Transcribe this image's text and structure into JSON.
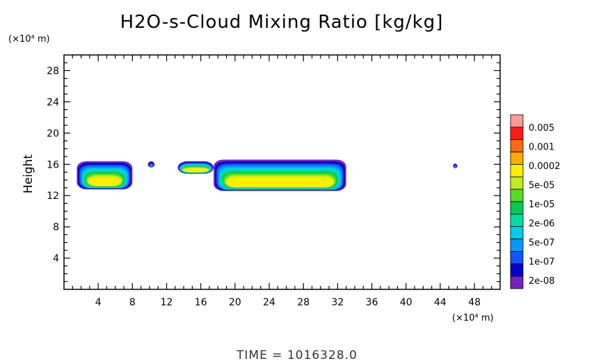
{
  "chart_data": {
    "type": "heatmap",
    "title": "H2O-s-Cloud Mixing Ratio [kg/kg]",
    "ylabel": "Height",
    "xunit": "(×10⁴ m)",
    "yunit": "(×10⁴ m)",
    "xlim": [
      0,
      51
    ],
    "ylim": [
      0,
      30
    ],
    "xticks": [
      "4",
      "8",
      "12",
      "16",
      "20",
      "24",
      "28",
      "32",
      "36",
      "40",
      "44",
      "48"
    ],
    "xtick_values": [
      4,
      8,
      12,
      16,
      20,
      24,
      28,
      32,
      36,
      40,
      44,
      48
    ],
    "yticks": [
      "4",
      "8",
      "12",
      "16",
      "20",
      "24",
      "28"
    ],
    "ytick_values": [
      4,
      8,
      12,
      16,
      20,
      24,
      28
    ],
    "time_label": "TIME = 1016328.0",
    "colorbar": {
      "labels": [
        "0.005",
        "0.001",
        "0.0002",
        "5e-05",
        "1e-05",
        "2e-06",
        "5e-07",
        "1e-07",
        "2e-08"
      ],
      "colors": [
        "#ff9a9a",
        "#ff1a1a",
        "#ff6a10",
        "#ffaa00",
        "#ffee00",
        "#bdee1a",
        "#55dd22",
        "#00cc55",
        "#00dda0",
        "#00ccee",
        "#0099ff",
        "#1155ff",
        "#0000cc",
        "#7722bb"
      ]
    },
    "cloud_regions": [
      {
        "name": "cloud-1",
        "x_range": [
          1.5,
          8
        ],
        "z_range": [
          12.8,
          16.4
        ]
      },
      {
        "name": "cloud-2",
        "x_range": [
          9.8,
          10.6
        ],
        "z_range": [
          15.6,
          16.4
        ]
      },
      {
        "name": "cloud-3",
        "x_range": [
          13.3,
          17.5
        ],
        "z_range": [
          14.8,
          16.4
        ]
      },
      {
        "name": "cloud-4",
        "x_range": [
          17.5,
          33
        ],
        "z_range": [
          12.6,
          16.6
        ]
      },
      {
        "name": "cloud-5",
        "x_range": [
          45.5,
          46
        ],
        "z_range": [
          15.5,
          16.1
        ]
      }
    ]
  }
}
